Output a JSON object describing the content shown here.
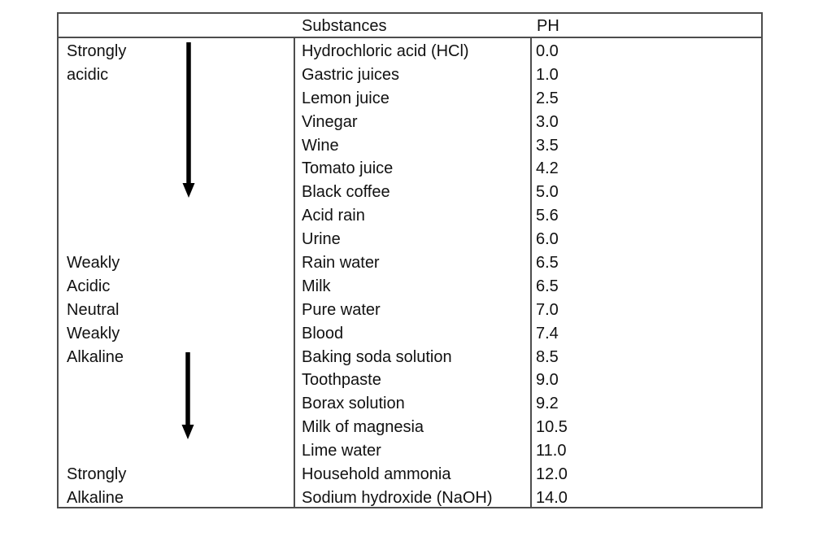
{
  "page": {
    "background_color": "#ffffff",
    "text_color": "#111111",
    "border_color": "#4d4d4d",
    "arrow_color": "#000000"
  },
  "table": {
    "header": {
      "category": "",
      "substances": "Substances",
      "ph": "PH"
    },
    "categories": [
      {
        "label": "Strongly",
        "row": 0
      },
      {
        "label": "acidic",
        "row": 1
      },
      {
        "label": "Weakly",
        "row": 9
      },
      {
        "label": "Acidic",
        "row": 10
      },
      {
        "label": "Neutral",
        "row": 11
      },
      {
        "label": "Weakly",
        "row": 12
      },
      {
        "label": "Alkaline",
        "row": 13
      },
      {
        "label": "Strongly",
        "row": 18
      },
      {
        "label": "Alkaline",
        "row": 19
      }
    ],
    "rows": [
      {
        "substance": "Hydrochloric acid (HCl)",
        "ph": "0.0"
      },
      {
        "substance": "Gastric juices",
        "ph": "1.0"
      },
      {
        "substance": "Lemon juice",
        "ph": "2.5"
      },
      {
        "substance": "Vinegar",
        "ph": "3.0"
      },
      {
        "substance": "Wine",
        "ph": "3.5"
      },
      {
        "substance": "Tomato juice",
        "ph": "4.2"
      },
      {
        "substance": "Black coffee",
        "ph": "5.0"
      },
      {
        "substance": "Acid rain",
        "ph": "5.6"
      },
      {
        "substance": "Urine",
        "ph": "6.0"
      },
      {
        "substance": "Rain water",
        "ph": "6.5"
      },
      {
        "substance": "Milk",
        "ph": "6.5"
      },
      {
        "substance": "Pure water",
        "ph": "7.0"
      },
      {
        "substance": "Blood",
        "ph": "7.4"
      },
      {
        "substance": "Baking soda solution",
        "ph": "8.5"
      },
      {
        "substance": "Toothpaste",
        "ph": "9.0"
      },
      {
        "substance": "Borax solution",
        "ph": "9.2"
      },
      {
        "substance": "Milk of magnesia",
        "ph": "10.5"
      },
      {
        "substance": "Lime water",
        "ph": "11.0"
      },
      {
        "substance": "Household ammonia",
        "ph": "12.0"
      },
      {
        "substance": "Sodium hydroxide (NaOH)",
        "ph": "14.0"
      }
    ],
    "arrows": [
      {
        "name": "acidic-direction-arrow",
        "direction": "down"
      },
      {
        "name": "alkaline-direction-arrow",
        "direction": "down"
      }
    ]
  }
}
